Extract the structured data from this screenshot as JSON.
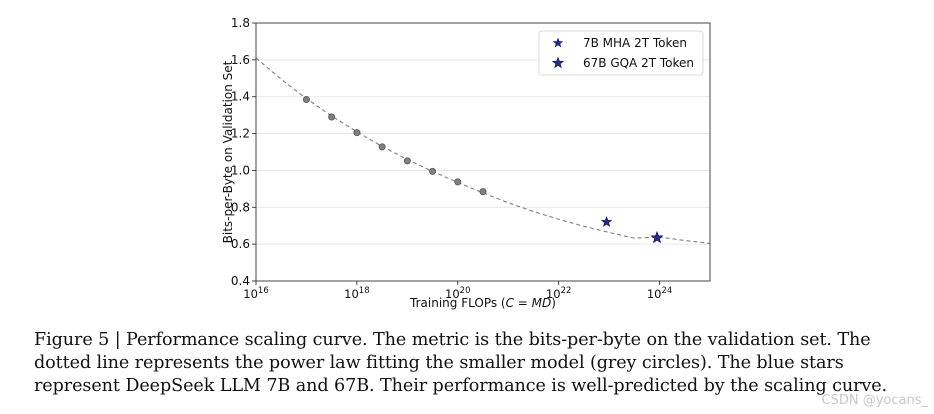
{
  "chart_data": {
    "type": "scatter",
    "xscale": "log",
    "xlabel_prefix": "Training FLOPs (",
    "xlabel_math": "C = MD",
    "xlabel_suffix": ")",
    "ylabel": "Bits-per-Byte on Validation Set",
    "xlim_exp": [
      16,
      25
    ],
    "ylim": [
      0.4,
      1.8
    ],
    "x_ticks": [
      {
        "exp": 16,
        "base": "10",
        "sup": "16"
      },
      {
        "exp": 18,
        "base": "10",
        "sup": "18"
      },
      {
        "exp": 20,
        "base": "10",
        "sup": "20"
      },
      {
        "exp": 22,
        "base": "10",
        "sup": "22"
      },
      {
        "exp": 24,
        "base": "10",
        "sup": "24"
      }
    ],
    "y_ticks": [
      {
        "value": 0.4,
        "label": "0.4"
      },
      {
        "value": 0.6,
        "label": "0.6"
      },
      {
        "value": 0.8,
        "label": "0.8"
      },
      {
        "value": 1.0,
        "label": "1.0"
      },
      {
        "value": 1.2,
        "label": "1.2"
      },
      {
        "value": 1.4,
        "label": "1.4"
      },
      {
        "value": 1.6,
        "label": "1.6"
      },
      {
        "value": 1.8,
        "label": "1.8"
      }
    ],
    "grid": "horizontal",
    "fit_curve": {
      "style": "dashed",
      "color": "#808080",
      "x_exp": [
        16.0,
        16.5,
        17.0,
        17.5,
        18.0,
        18.5,
        19.0,
        19.5,
        20.0,
        20.5,
        21.0,
        21.5,
        22.0,
        22.5,
        23.0,
        23.5,
        24.0,
        24.5,
        25.0
      ],
      "y": [
        1.61,
        1.495,
        1.39,
        1.295,
        1.21,
        1.13,
        1.06,
        0.995,
        0.935,
        0.878,
        0.825,
        0.777,
        0.735,
        0.697,
        0.663,
        0.633,
        0.638,
        0.62,
        0.604
      ]
    },
    "series": [
      {
        "name": "small models",
        "marker": "circle",
        "color": "#808080",
        "x_exp": [
          17.0,
          17.5,
          18.0,
          18.5,
          19.0,
          19.5,
          20.0,
          20.5
        ],
        "y": [
          1.385,
          1.29,
          1.205,
          1.128,
          1.052,
          0.995,
          0.938,
          0.885
        ]
      },
      {
        "name": "7B MHA 2T Token",
        "marker": "star",
        "color": "#1f2f8f",
        "x_exp": [
          22.95
        ],
        "y": [
          0.72
        ]
      },
      {
        "name": "67B GQA 2T Token",
        "marker": "star",
        "color": "#1f2f8f",
        "x_exp": [
          23.95
        ],
        "y": [
          0.635
        ]
      }
    ],
    "legend": {
      "position": "top-right",
      "entries": [
        {
          "label": "7B MHA 2T Token",
          "marker": "star-small"
        },
        {
          "label": "67B GQA 2T Token",
          "marker": "star-large"
        }
      ]
    }
  },
  "caption": {
    "text": "Figure 5 | Performance scaling curve. The metric is the bits-per-byte on the validation set. The dotted line represents the power law fitting the smaller model (grey circles). The blue stars represent DeepSeek LLM 7B and 67B. Their performance is well-predicted by the scaling curve."
  },
  "watermark": {
    "text": "CSDN @yocans_"
  }
}
